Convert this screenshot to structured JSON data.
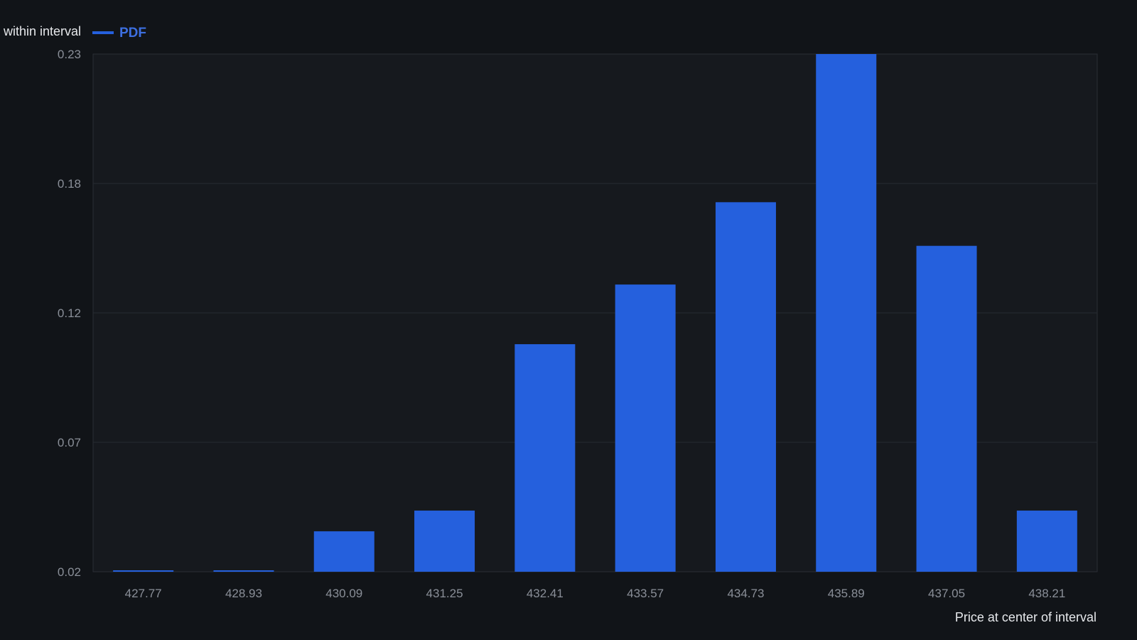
{
  "chart_data": {
    "type": "bar",
    "categories": [
      "427.77",
      "428.93",
      "430.09",
      "431.25",
      "432.41",
      "433.57",
      "434.73",
      "435.89",
      "437.05",
      "438.21"
    ],
    "series": [
      {
        "name": "PDF",
        "values": [
          0.0203,
          0.0203,
          0.0364,
          0.0448,
          0.1123,
          0.1365,
          0.1699,
          0.23,
          0.1522,
          0.0448
        ],
        "color": "#2560dd"
      }
    ],
    "ylabel": "within interval",
    "xlabel": "Price at center of interval",
    "ylim": [
      0.02,
      0.23
    ],
    "yticks": [
      "0.23",
      "0.18",
      "0.12",
      "0.07",
      "0.02"
    ],
    "grid": true,
    "legend": "top-left"
  },
  "colors": {
    "background": "#111418",
    "plot_background": "#16191e",
    "grid": "#262a31",
    "tick_text": "#8a8f98",
    "label_text": "#e6e8eb",
    "accent": "#2560dd",
    "legend_text": "#3d6fe0"
  }
}
